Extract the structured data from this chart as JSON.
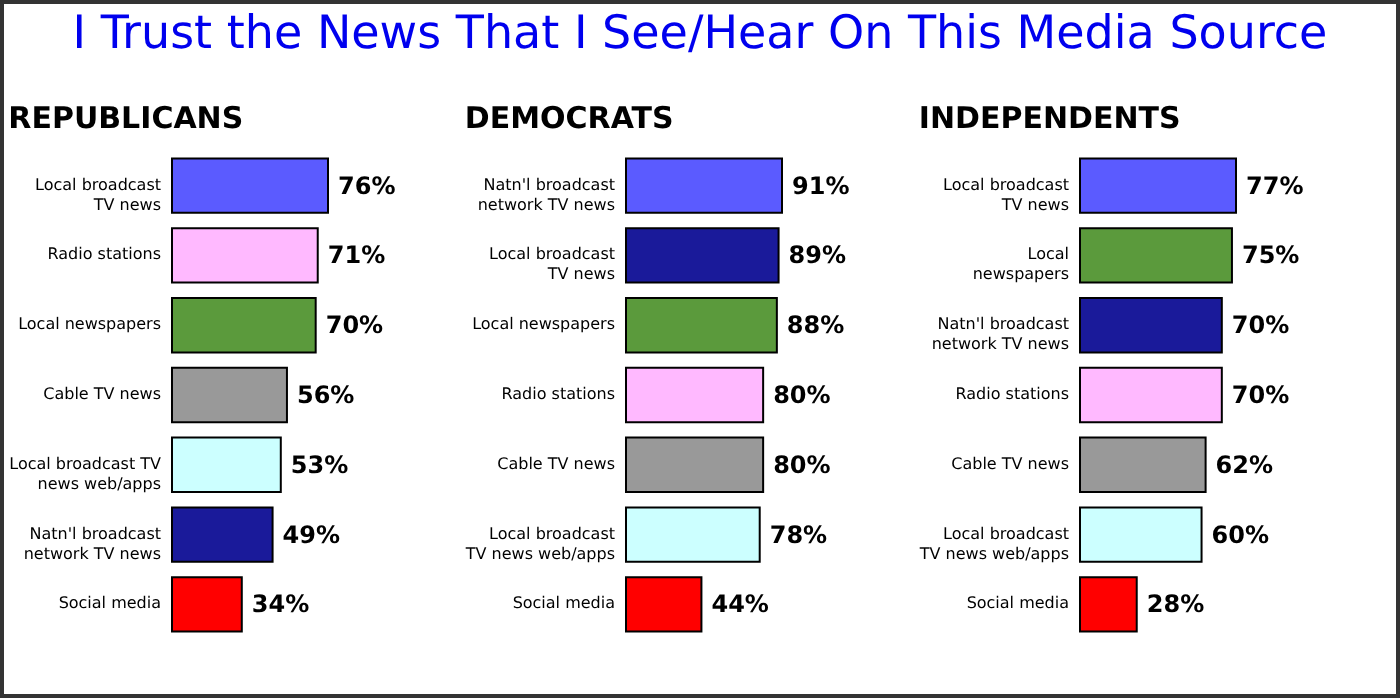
{
  "chart_data": [
    {
      "type": "other",
      "title": "I Trust the News That I See/Hear On This Media Source"
    },
    {
      "type": "bar",
      "orientation": "horizontal",
      "title": "REPUBLICANS",
      "categories": [
        "Local broadcast\nTV news",
        "Radio stations",
        "Local newspapers",
        "Cable TV news",
        "Local broadcast TV\nnews web/apps",
        "Natn'l broadcast\nnetwork TV news",
        "Social media"
      ],
      "values": [
        76,
        71,
        70,
        56,
        53,
        49,
        34
      ],
      "value_labels": [
        "76%",
        "71%",
        "70%",
        "56%",
        "53%",
        "49%",
        "34%"
      ],
      "colors": [
        "#5b5bff",
        "#ffb9ff",
        "#5b9a3c",
        "#999999",
        "#ccffff",
        "#1a1a9a",
        "#ff0000"
      ]
    },
    {
      "type": "bar",
      "orientation": "horizontal",
      "title": "DEMOCRATS",
      "categories": [
        "Natn'l broadcast\nnetwork TV news",
        "Local broadcast\nTV news",
        "Local newspapers",
        "Radio stations",
        "Cable TV news",
        "Local broadcast\nTV news web/apps",
        "Social media"
      ],
      "values": [
        91,
        89,
        88,
        80,
        80,
        78,
        44
      ],
      "value_labels": [
        "91%",
        "89%",
        "88%",
        "80%",
        "80%",
        "78%",
        "44%"
      ],
      "colors": [
        "#5b5bff",
        "#1a1a9a",
        "#5b9a3c",
        "#ffb9ff",
        "#999999",
        "#ccffff",
        "#ff0000"
      ]
    },
    {
      "type": "bar",
      "orientation": "horizontal",
      "title": "INDEPENDENTS",
      "categories": [
        "Local broadcast\nTV news",
        "Local\nnewspapers",
        "Natn'l broadcast\nnetwork TV news",
        "Radio stations",
        "Cable TV news",
        "Local broadcast\nTV news web/apps",
        "Social media"
      ],
      "values": [
        77,
        75,
        70,
        70,
        62,
        60,
        28
      ],
      "value_labels": [
        "77%",
        "75%",
        "70%",
        "70%",
        "62%",
        "60%",
        "28%"
      ],
      "colors": [
        "#5b5bff",
        "#5b9a3c",
        "#1a1a9a",
        "#ffb9ff",
        "#999999",
        "#ccffff",
        "#ff0000"
      ]
    }
  ]
}
